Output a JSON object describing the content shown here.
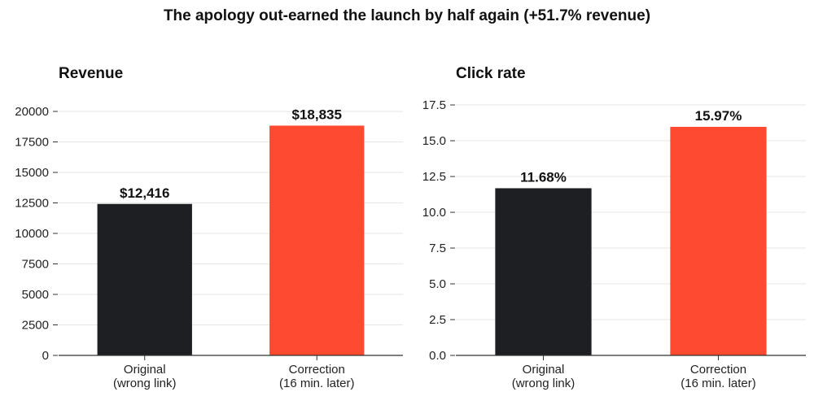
{
  "figure": {
    "title": "The apology out-earned the launch by half again (+51.7% revenue)"
  },
  "colors": {
    "original": "#1e1f22",
    "correction": "#ff4a32",
    "grid": "#e6e6e6",
    "axis": "#333333"
  },
  "chart_data": [
    {
      "type": "bar",
      "title": "Revenue",
      "categories": [
        [
          "Original",
          "(wrong link)"
        ],
        [
          "Correction",
          "(16 min. later)"
        ]
      ],
      "values": [
        12416,
        18835
      ],
      "value_labels": [
        "$12,416",
        "$18,835"
      ],
      "ylim": [
        0,
        21000
      ],
      "yticks": [
        0,
        2500,
        5000,
        7500,
        10000,
        12500,
        15000,
        17500,
        20000
      ],
      "ytick_labels": [
        "0",
        "2500",
        "5000",
        "7500",
        "10000",
        "12500",
        "15000",
        "17500",
        "20000"
      ],
      "grid": true,
      "xlabel": "",
      "ylabel": ""
    },
    {
      "type": "bar",
      "title": "Click rate",
      "categories": [
        [
          "Original",
          "(wrong link)"
        ],
        [
          "Correction",
          "(16 min. later)"
        ]
      ],
      "values": [
        11.68,
        15.97
      ],
      "value_labels": [
        "11.68%",
        "15.97%"
      ],
      "ylim": [
        0,
        17.9
      ],
      "yticks": [
        0,
        2.5,
        5,
        7.5,
        10,
        12.5,
        15,
        17.5
      ],
      "ytick_labels": [
        "0.0",
        "2.5",
        "5.0",
        "7.5",
        "10.0",
        "12.5",
        "15.0",
        "17.5"
      ],
      "grid": true,
      "xlabel": "",
      "ylabel": ""
    }
  ]
}
